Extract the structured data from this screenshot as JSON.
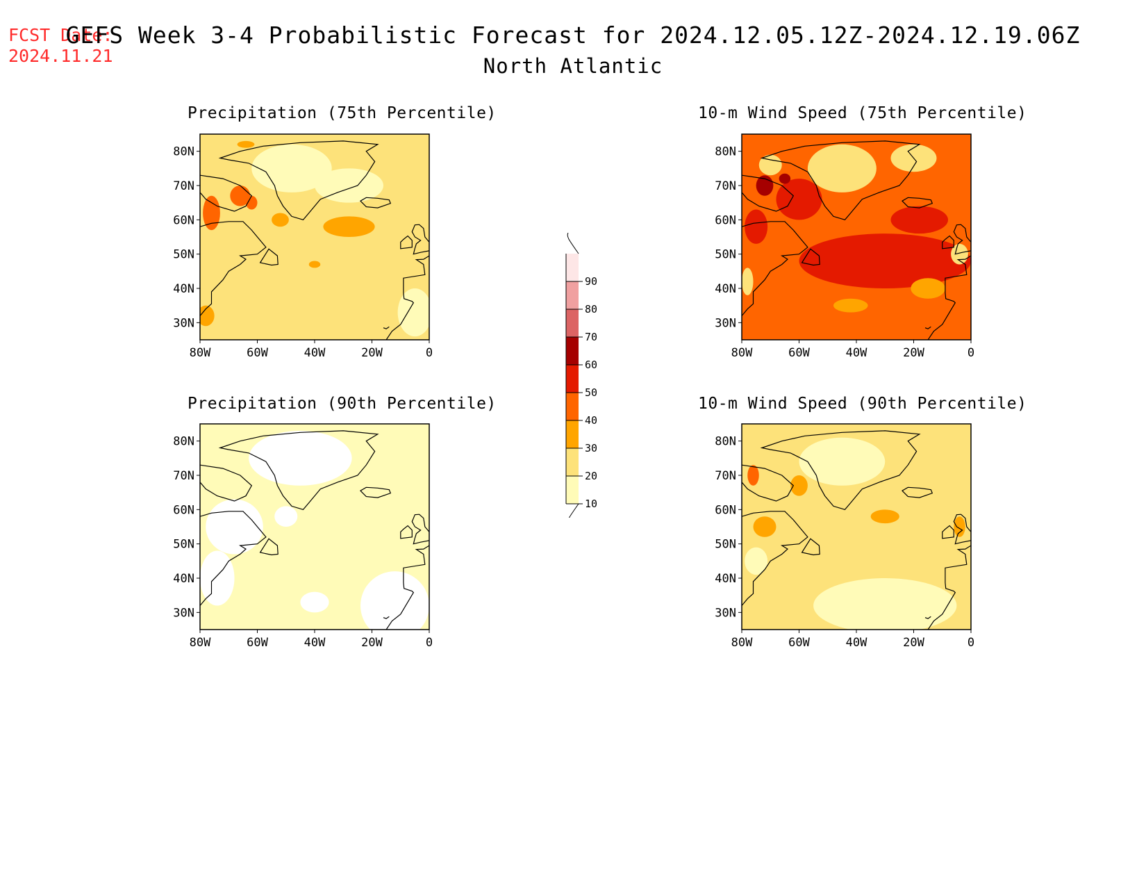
{
  "header": {
    "fcst_label": "FCST Date:",
    "fcst_date": "2024.11.21",
    "title": "GEFS Week 3-4 Probabilistic Forecast for 2024.12.05.12Z-2024.12.19.06Z",
    "region": "North Atlantic"
  },
  "panels": [
    {
      "title": "Precipitation (75th Percentile)",
      "base_level": 20
    },
    {
      "title": "10-m Wind Speed (75th Percentile)",
      "base_level": 40
    },
    {
      "title": "Precipitation (90th Percentile)",
      "base_level": 10
    },
    {
      "title": "10-m Wind Speed (90th Percentile)",
      "base_level": 20
    }
  ],
  "axes": {
    "lat_labels": [
      "80N",
      "70N",
      "60N",
      "50N",
      "40N",
      "30N"
    ],
    "lon_labels": [
      "80W",
      "60W",
      "40W",
      "20W",
      "0"
    ]
  },
  "colorbar": {
    "levels": [
      10,
      20,
      30,
      40,
      50,
      60,
      70,
      80,
      90
    ],
    "colors": [
      "#fffbb8",
      "#fde27a",
      "#ffa500",
      "#ff6500",
      "#e41a00",
      "#a50000",
      "#dc6464",
      "#f0a0a0",
      "#fde6e6"
    ]
  }
}
